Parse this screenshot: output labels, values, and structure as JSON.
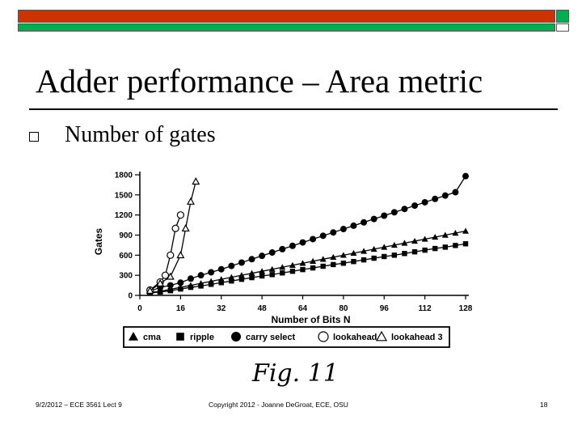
{
  "slide": {
    "title": "Adder performance – Area metric",
    "bullet": "Number of gates",
    "figure_caption": "Fig. 11",
    "footer_left": "9/2/2012 – ECE 3561 Lect 9",
    "footer_center": "Copyright 2012 - Joanne DeGroat, ECE, OSU",
    "footer_right": "18"
  },
  "chart_data": {
    "type": "line",
    "xlabel": "Number of Bits N",
    "ylabel": "Gates",
    "xlim": [
      0,
      128
    ],
    "ylim": [
      0,
      1800
    ],
    "x_ticks": [
      "0",
      "16",
      "32",
      "48",
      "64",
      "80",
      "96",
      "112",
      "128"
    ],
    "y_ticks": [
      "0",
      "300",
      "600",
      "900",
      "1200",
      "1500",
      "1800"
    ],
    "legend_placement": "bottom",
    "series": [
      {
        "name": "cma",
        "marker": "triangle-filled",
        "x": [
          4,
          8,
          12,
          16,
          20,
          24,
          28,
          32,
          36,
          40,
          44,
          48,
          52,
          56,
          60,
          64,
          68,
          72,
          76,
          80,
          84,
          88,
          92,
          96,
          100,
          104,
          108,
          112,
          116,
          120,
          124,
          128
        ],
        "y": [
          45,
          60,
          90,
          120,
          150,
          180,
          210,
          240,
          270,
          300,
          330,
          360,
          390,
          420,
          450,
          480,
          510,
          540,
          570,
          600,
          630,
          660,
          690,
          720,
          750,
          780,
          810,
          840,
          870,
          900,
          930,
          960
        ]
      },
      {
        "name": "ripple",
        "marker": "square-filled",
        "x": [
          4,
          8,
          12,
          16,
          20,
          24,
          28,
          32,
          36,
          40,
          44,
          48,
          52,
          56,
          60,
          64,
          68,
          72,
          76,
          80,
          84,
          88,
          92,
          96,
          100,
          104,
          108,
          112,
          116,
          120,
          124,
          128
        ],
        "y": [
          40,
          50,
          70,
          95,
          120,
          140,
          165,
          190,
          215,
          240,
          265,
          290,
          310,
          335,
          360,
          385,
          410,
          435,
          460,
          480,
          505,
          530,
          555,
          580,
          600,
          625,
          650,
          675,
          700,
          720,
          745,
          770
        ]
      },
      {
        "name": "carry select",
        "marker": "circle-filled",
        "x": [
          4,
          8,
          12,
          16,
          20,
          24,
          28,
          32,
          36,
          40,
          44,
          48,
          52,
          56,
          60,
          64,
          68,
          72,
          76,
          80,
          84,
          88,
          92,
          96,
          100,
          104,
          108,
          112,
          116,
          120,
          124,
          128
        ],
        "y": [
          60,
          120,
          150,
          190,
          250,
          300,
          345,
          390,
          440,
          490,
          540,
          590,
          640,
          690,
          740,
          790,
          840,
          890,
          940,
          990,
          1040,
          1090,
          1140,
          1190,
          1240,
          1290,
          1340,
          1390,
          1440,
          1490,
          1540,
          1780
        ]
      },
      {
        "name": "lookahead",
        "marker": "circle-open",
        "x": [
          4,
          8,
          10,
          12,
          14,
          16
        ],
        "y": [
          80,
          200,
          300,
          600,
          1000,
          1200
        ]
      },
      {
        "name": "lookahead 3",
        "marker": "triangle-open",
        "x": [
          4,
          8,
          12,
          16,
          18,
          20,
          22
        ],
        "y": [
          70,
          180,
          280,
          600,
          1000,
          1400,
          1700
        ]
      }
    ]
  }
}
